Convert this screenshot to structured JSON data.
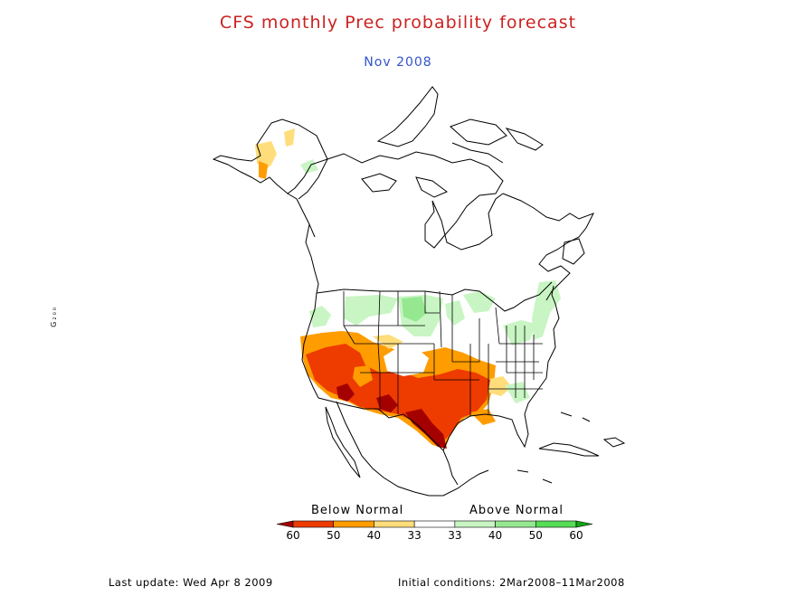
{
  "title": "CFS monthly Prec probability forecast",
  "subtitle": "Nov 2008",
  "side_mark": "G₂₀₀",
  "legend": {
    "below_label": "Below Normal",
    "above_label": "Above Normal",
    "bins": [
      {
        "color": "#a50000",
        "label": "60"
      },
      {
        "color": "#ee3b00",
        "label": "50"
      },
      {
        "color": "#ff9c00",
        "label": "40"
      },
      {
        "color": "#ffdd7a",
        "label": "33"
      },
      {
        "color": "#ffffff",
        "label": "33"
      },
      {
        "color": "#c8f5c3",
        "label": "40"
      },
      {
        "color": "#95e890",
        "label": "50"
      },
      {
        "color": "#55dd55",
        "label": "60"
      },
      {
        "color": "#13a513",
        "label": ""
      }
    ]
  },
  "footer": {
    "last_update": "Last update: Wed Apr 8 2009",
    "initial_conditions": "Initial conditions: 2Mar2008–11Mar2008"
  },
  "colors": {
    "title": "#cc2222",
    "subtitle": "#3355cc",
    "outline": "#000000",
    "below_60": "#a50000",
    "below_50": "#ee3b00",
    "below_40": "#ff9c00",
    "below_33": "#ffdd7a",
    "above_40": "#c8f5c3",
    "above_50": "#95e890"
  }
}
